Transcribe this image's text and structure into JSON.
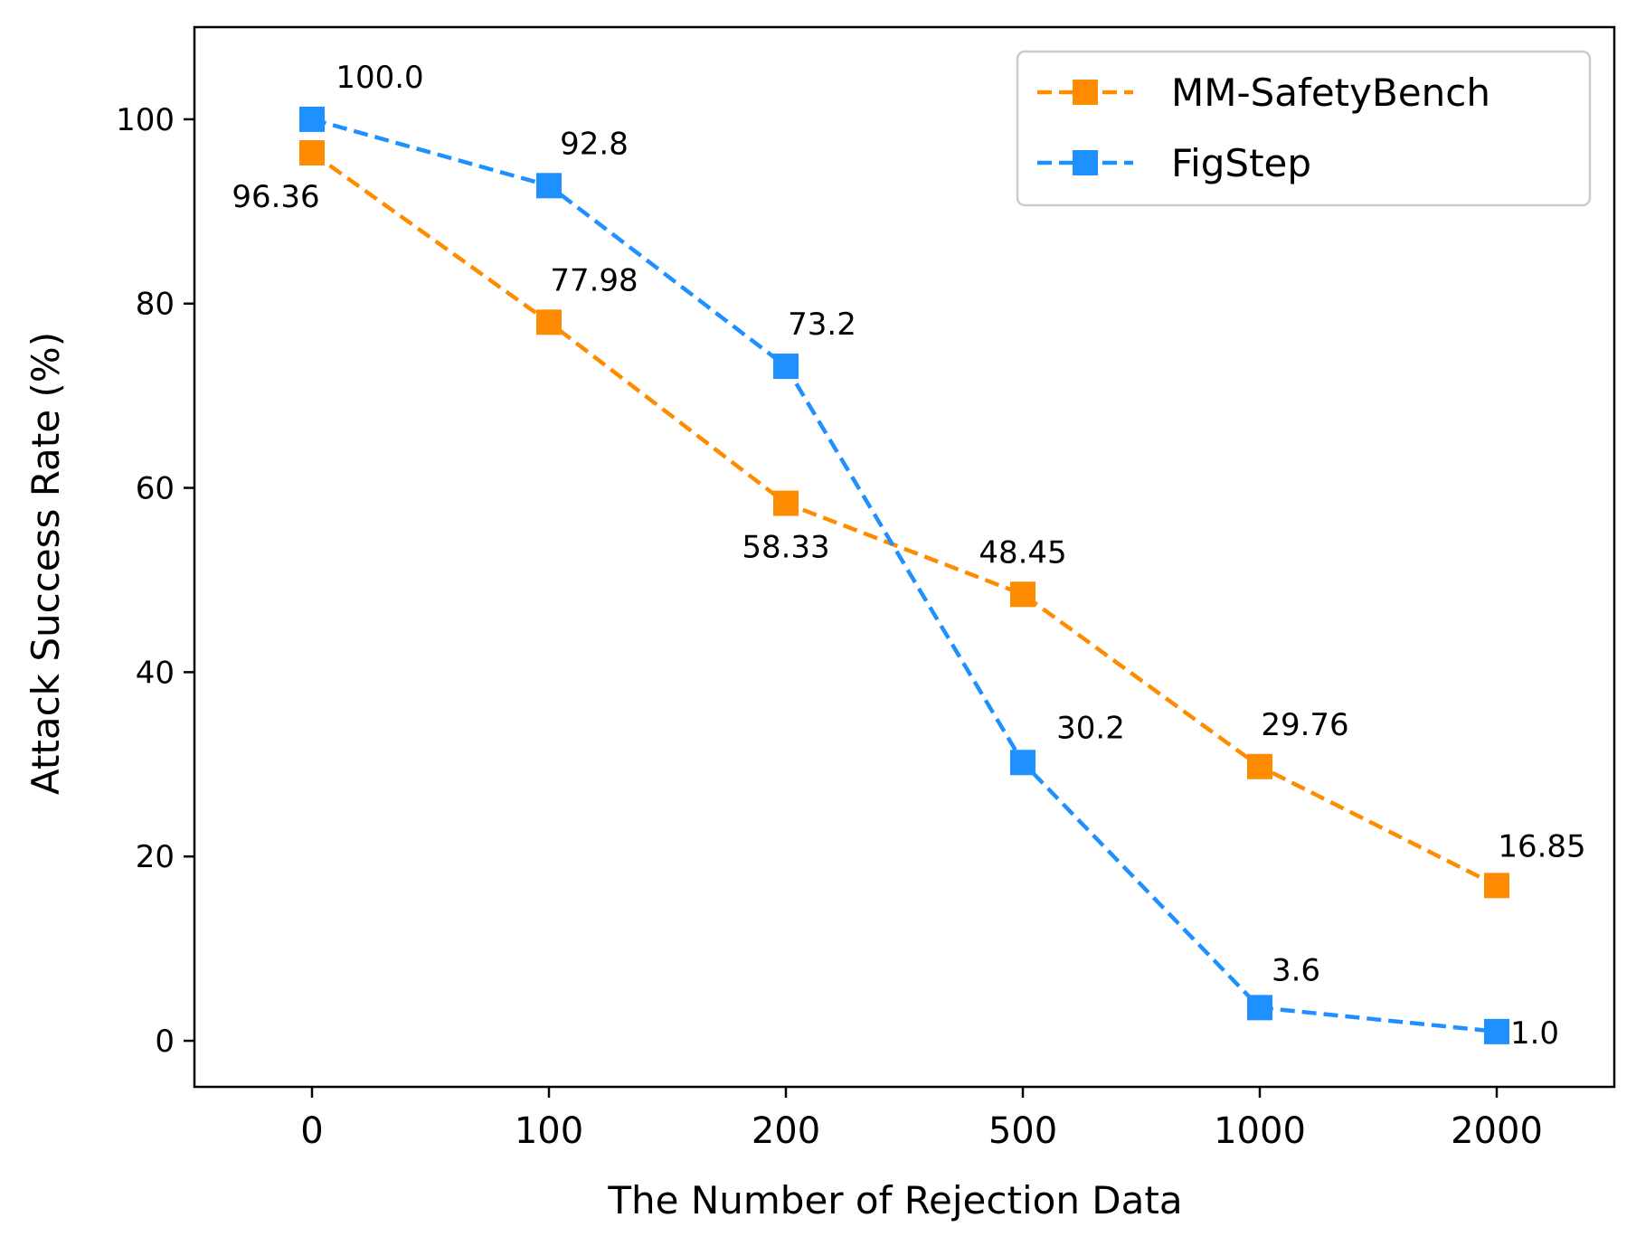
{
  "chart_data": {
    "type": "line",
    "title": "",
    "xlabel": "The Number of Rejection Data",
    "ylabel": "Attack Success Rate (%)",
    "categories": [
      "0",
      "100",
      "200",
      "500",
      "1000",
      "2000"
    ],
    "yticks": [
      0,
      20,
      40,
      60,
      80,
      100
    ],
    "ylim": [
      -5,
      110
    ],
    "grid": false,
    "legend_position": "top-right",
    "series": [
      {
        "name": "MM-SafetyBench",
        "color": "#ff8c00",
        "line_style": "dashed",
        "marker": "square",
        "values": [
          96.36,
          77.98,
          58.33,
          48.45,
          29.76,
          16.85
        ],
        "labels": [
          "96.36",
          "77.98",
          "58.33",
          "48.45",
          "29.76",
          "16.85"
        ]
      },
      {
        "name": "FigStep",
        "color": "#1e90ff",
        "line_style": "dashed",
        "marker": "square",
        "values": [
          100.0,
          92.8,
          73.2,
          30.2,
          3.6,
          1.0
        ],
        "labels": [
          "100.0",
          "92.8",
          "73.2",
          "30.2",
          "3.6",
          "1.0"
        ]
      }
    ]
  }
}
